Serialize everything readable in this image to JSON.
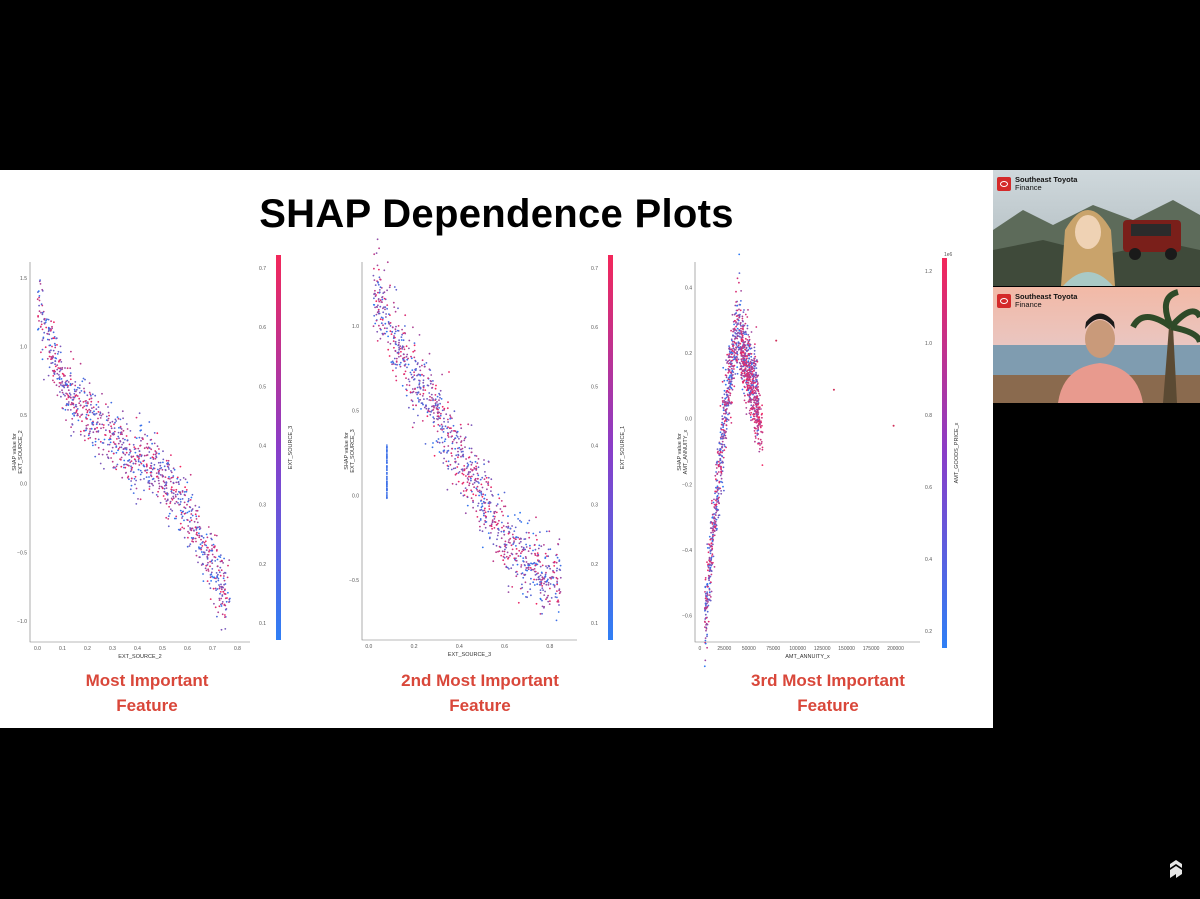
{
  "slide": {
    "title": "SHAP Dependence Plots",
    "captions": [
      {
        "line1": "Most Important",
        "line2": "Feature"
      },
      {
        "line1": "2nd Most Important",
        "line2": "Feature"
      },
      {
        "line1": "3rd Most Important",
        "line2": "Feature"
      }
    ]
  },
  "chart_data": [
    {
      "type": "scatter",
      "xlabel": "EXT_SOURCE_2",
      "ylabel": "SHAP value for\nEXT_SOURCE_2",
      "colorbar_label": "EXT_SOURCE_3",
      "xlim": [
        -0.03,
        0.85
      ],
      "ylim": [
        -1.15,
        1.62
      ],
      "x_ticks": [
        "0.0",
        "0.1",
        "0.2",
        "0.3",
        "0.4",
        "0.5",
        "0.6",
        "0.7",
        "0.8"
      ],
      "y_ticks": [
        "1.5",
        "1.0",
        "0.5",
        "0.0",
        "−0.5",
        "−1.0"
      ],
      "y_tick_values": [
        1.5,
        1.0,
        0.5,
        0.0,
        -0.5,
        -1.0
      ],
      "colorbar_ticks": [
        "0.7",
        "0.6",
        "0.5",
        "0.4",
        "0.3",
        "0.2",
        "0.1"
      ],
      "trend": [
        [
          0.0,
          1.28
        ],
        [
          0.05,
          1.05
        ],
        [
          0.1,
          0.72
        ],
        [
          0.2,
          0.5
        ],
        [
          0.3,
          0.35
        ],
        [
          0.35,
          0.2
        ],
        [
          0.45,
          0.17
        ],
        [
          0.5,
          0.05
        ],
        [
          0.6,
          -0.2
        ],
        [
          0.7,
          -0.6
        ],
        [
          0.77,
          -0.85
        ]
      ],
      "spread": 0.12
    },
    {
      "type": "scatter",
      "xlabel": "EXT_SOURCE_3",
      "ylabel": "SHAP value for\nEXT_SOURCE_3",
      "colorbar_label": "EXT_SOURCE_1",
      "xlim": [
        -0.03,
        0.92
      ],
      "ylim": [
        -0.85,
        1.38
      ],
      "x_ticks": [
        "0.0",
        "0.2",
        "0.4",
        "0.6",
        "0.8"
      ],
      "y_ticks": [
        "1.0",
        "0.5",
        "0.0",
        "−0.5"
      ],
      "y_tick_values": [
        1.0,
        0.5,
        0.0,
        -0.5
      ],
      "colorbar_ticks": [
        "0.7",
        "0.6",
        "0.5",
        "0.4",
        "0.3",
        "0.2",
        "0.1"
      ],
      "trend": [
        [
          0.02,
          1.22
        ],
        [
          0.1,
          0.95
        ],
        [
          0.2,
          0.7
        ],
        [
          0.3,
          0.5
        ],
        [
          0.4,
          0.25
        ],
        [
          0.5,
          0.0
        ],
        [
          0.6,
          -0.25
        ],
        [
          0.7,
          -0.4
        ],
        [
          0.8,
          -0.5
        ],
        [
          0.85,
          -0.5
        ]
      ],
      "spread": 0.11
    },
    {
      "type": "scatter",
      "xlabel": "AMT_ANNUITY_x",
      "ylabel": "SHAP value for\nAMT_ANNUITY_x",
      "colorbar_label": "AMT_GOODS_PRICE_x",
      "colorbar_offset": "1e6",
      "xlim": [
        -5000,
        225000
      ],
      "ylim": [
        -0.68,
        0.48
      ],
      "x_ticks": [
        "0",
        "25000",
        "50000",
        "75000",
        "100000",
        "125000",
        "150000",
        "175000",
        "200000"
      ],
      "x_tick_values": [
        0,
        25000,
        50000,
        75000,
        100000,
        125000,
        150000,
        175000,
        200000
      ],
      "y_ticks": [
        "0.4",
        "0.2",
        "0.0",
        "−0.2",
        "−0.4",
        "−0.6"
      ],
      "y_tick_values": [
        0.4,
        0.2,
        0.0,
        -0.2,
        -0.4,
        -0.6
      ],
      "colorbar_ticks": [
        "1.2",
        "1.0",
        "0.8",
        "0.6",
        "0.4",
        "0.2"
      ],
      "trend": [
        [
          5000,
          -0.62
        ],
        [
          15000,
          -0.3
        ],
        [
          25000,
          0.0
        ],
        [
          35000,
          0.22
        ],
        [
          40000,
          0.28
        ],
        [
          45000,
          0.2
        ],
        [
          55000,
          0.12
        ],
        [
          60000,
          0.05
        ]
      ],
      "spread": 0.06
    }
  ],
  "participants": [
    {
      "company": "Southeast Toyota",
      "subtitle": "Finance"
    },
    {
      "company": "Southeast Toyota",
      "subtitle": "Finance"
    }
  ]
}
